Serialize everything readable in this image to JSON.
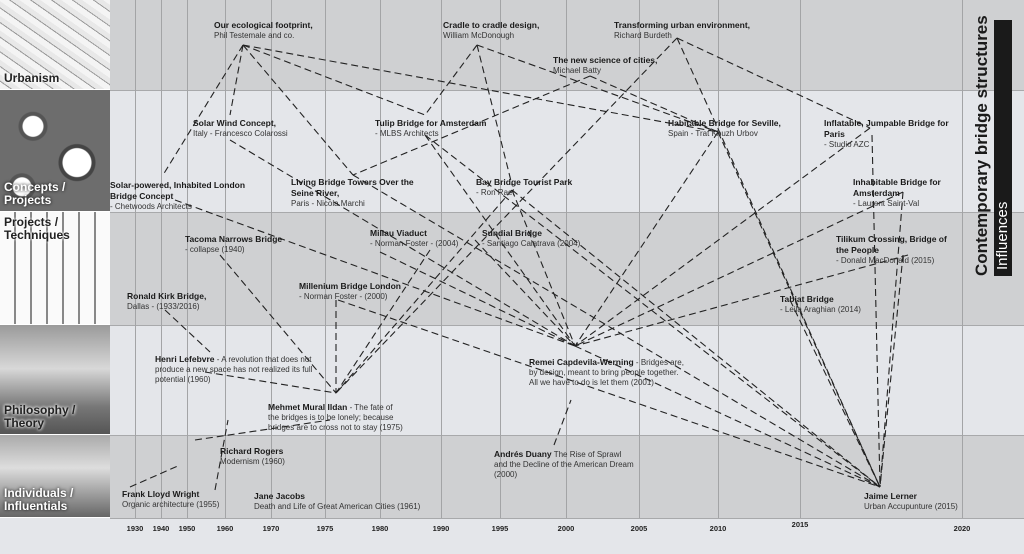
{
  "title": "Contemporary bridge structures",
  "subtitle": "Influences",
  "categories": [
    "Urbanism",
    "Concepts / Projects",
    "Projects / Techniques",
    "Philosophy / Theory",
    "Individuals / Influentials"
  ],
  "years": [
    "1930",
    "1940",
    "1950",
    "1960",
    "1970",
    "1975",
    "1980",
    "1990",
    "1995",
    "2000",
    "2005",
    "2010",
    "2015",
    "2020"
  ],
  "nodes": {
    "testemale": {
      "title": "Our ecological footprint,",
      "desc": "Phil Testemale and co."
    },
    "mcdonough": {
      "title": "Cradle to cradle design,",
      "desc": "William McDonough"
    },
    "burdeth": {
      "title": "Transforming urban environment,",
      "desc": "Richard Burdeth"
    },
    "batty": {
      "title": "The new science of cities,",
      "desc": "Michael Batty"
    },
    "solarwind": {
      "title": "Solar Wind Concept,",
      "desc": " Italy - Francesco Colarossi"
    },
    "tulip": {
      "title": "Tulip Bridge for Amsterdam",
      "desc": " - MLBS Architects"
    },
    "seville": {
      "title": "Habitable Bridge for Seville,",
      "desc": " Spain - Trat Khuzh Urbov"
    },
    "paris": {
      "title": "Inflatable, Jumpable Bridge for Paris",
      "desc": " - Studio AZC"
    },
    "london": {
      "title": "Solar-powered, Inhabited London Bridge Concept",
      "desc": " - Chetwoods Architects"
    },
    "seine": {
      "title": "Living Bridge Towers Over the Seine River,",
      "desc": " Paris - Nicola Marchi"
    },
    "baybridge": {
      "title": "Bay Bridge Tourist Park",
      "desc": " - Ron Rael"
    },
    "amsterdam": {
      "title": "Inhabitable Bridge for Amsterdam",
      "desc": " - Laurent Saint-Val"
    },
    "tacoma": {
      "title": "Tacoma Narrows Bridge",
      "desc": " - collapse (1940)"
    },
    "millau": {
      "title": "Millau Viaduct",
      "desc": " - Norman Foster - (2004)"
    },
    "sundial": {
      "title": "Sundial Bridge",
      "desc": " - Santiago Calatrava (2004)"
    },
    "tilikum": {
      "title": "Tilikum Crossing, Bridge of the People",
      "desc": " - Donald MacDonald (2015)"
    },
    "kirk": {
      "title": "Ronald Kirk Bridge,",
      "desc": " Dallas - (1933/2016)"
    },
    "millennium": {
      "title": "Millenium Bridge London",
      "desc": " - Norman Foster - (2000)"
    },
    "tabiat": {
      "title": "Tabiat Bridge",
      "desc": " - Leila Araghian (2014)"
    },
    "lefebvre": {
      "title": "Henri Lefebvre",
      "desc": " - A revolution that does not produce a new space has not realized its full potential (1960)"
    },
    "remei": {
      "title": "Remei Capdevila-Werning",
      "desc": " - Bridges are, by design, meant to bring people together. All we have to do is let them (2001)"
    },
    "ildan": {
      "title": "Mehmet Mural Ildan",
      "desc": " - The fate of the bridges is to be lonely; because bridges are to cross not to stay (1975)"
    },
    "rogers": {
      "title": "Richard Rogers",
      "desc": " Modernism (1960)"
    },
    "duany": {
      "title": "Andrés Duany",
      "desc": " The Rise of Sprawl and the Decline of the American Dream (2000)"
    },
    "wright": {
      "title": "Frank Lloyd Wright",
      "desc": " Organic architecture (1955)"
    },
    "jacobs": {
      "title": "Jane Jacobs",
      "desc": " Death and Life of Great American Cities (1961)"
    },
    "lerner": {
      "title": "Jaime Lerner",
      "desc": " Urban Accupunture (2015)"
    }
  }
}
